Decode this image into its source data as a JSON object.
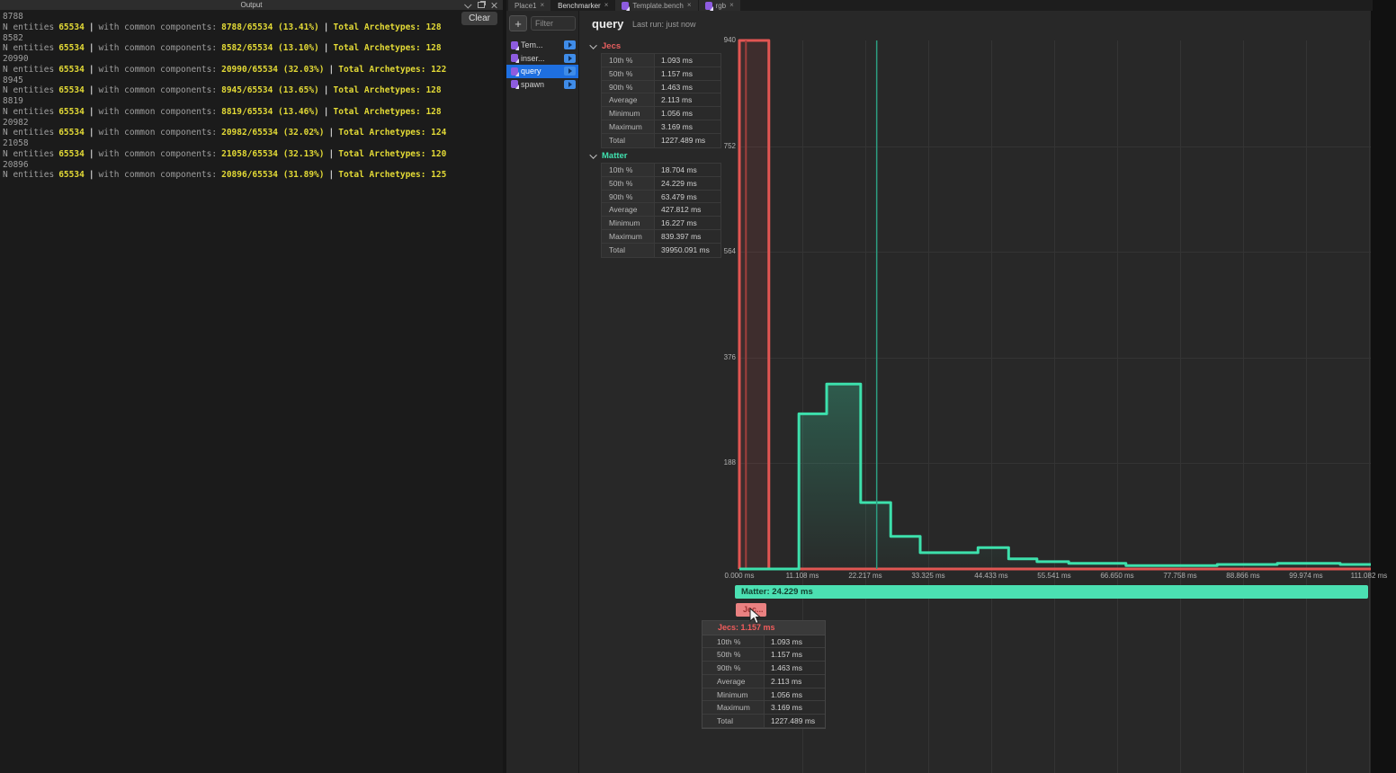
{
  "output": {
    "title": "Output",
    "clear_label": "Clear",
    "label_prefix": "N entities",
    "entities": "65534",
    "separator": "|",
    "label_mid": "with common components:",
    "lines": [
      {
        "raw": "8788",
        "ratio": "8788/65534 (13.41%)",
        "archetypes": "Total Archetypes: 128"
      },
      {
        "raw": "8582",
        "ratio": "8582/65534 (13.10%)",
        "archetypes": "Total Archetypes: 128"
      },
      {
        "raw": "20990",
        "ratio": "20990/65534 (32.03%)",
        "archetypes": "Total Archetypes: 122"
      },
      {
        "raw": "8945",
        "ratio": "8945/65534 (13.65%)",
        "archetypes": "Total Archetypes: 128"
      },
      {
        "raw": "8819",
        "ratio": "8819/65534 (13.46%)",
        "archetypes": "Total Archetypes: 128"
      },
      {
        "raw": "20982",
        "ratio": "20982/65534 (32.02%)",
        "archetypes": "Total Archetypes: 124"
      },
      {
        "raw": "21058",
        "ratio": "21058/65534 (32.13%)",
        "archetypes": "Total Archetypes: 120"
      },
      {
        "raw": "20896",
        "ratio": "20896/65534 (31.89%)",
        "archetypes": "Total Archetypes: 125"
      }
    ]
  },
  "tabs": [
    {
      "label": "Place1",
      "close": "×",
      "icon": false,
      "active": false
    },
    {
      "label": "Benchmarker",
      "close": "×",
      "icon": false,
      "active": true
    },
    {
      "label": "Template.bench",
      "close": "×",
      "icon": true,
      "active": false
    },
    {
      "label": "rgb",
      "close": "×",
      "icon": true,
      "active": false
    }
  ],
  "bench_list": {
    "add_label": "+",
    "filter_placeholder": "Filter",
    "items": [
      {
        "label": "Tem...",
        "selected": false
      },
      {
        "label": "inser...",
        "selected": false
      },
      {
        "label": "query",
        "selected": true
      },
      {
        "label": "spawn",
        "selected": false
      }
    ]
  },
  "detail": {
    "title": "query",
    "last_run": "Last run: just now",
    "sections": [
      {
        "name": "Jecs",
        "color": "#e85f5f",
        "rows": [
          {
            "label": "10th %",
            "value": "1.093 ms"
          },
          {
            "label": "50th %",
            "value": "1.157 ms"
          },
          {
            "label": "90th %",
            "value": "1.463 ms"
          },
          {
            "label": "Average",
            "value": "2.113 ms"
          },
          {
            "label": "Minimum",
            "value": "1.056 ms"
          },
          {
            "label": "Maximum",
            "value": "3.169 ms"
          },
          {
            "label": "Total",
            "value": "1227.489 ms"
          }
        ]
      },
      {
        "name": "Matter",
        "color": "#3fe0ae",
        "rows": [
          {
            "label": "10th %",
            "value": "18.704 ms"
          },
          {
            "label": "50th %",
            "value": "24.229 ms"
          },
          {
            "label": "90th %",
            "value": "63.479 ms"
          },
          {
            "label": "Average",
            "value": "427.812 ms"
          },
          {
            "label": "Minimum",
            "value": "16.227 ms"
          },
          {
            "label": "Maximum",
            "value": "839.397 ms"
          },
          {
            "label": "Total",
            "value": "39950.091 ms"
          }
        ]
      }
    ]
  },
  "chart_data": {
    "type": "histogram-step-line",
    "grid": true,
    "xlim": [
      0,
      111.4
    ],
    "ylim": [
      0,
      940
    ],
    "x_ticks": [
      {
        "ms": 0,
        "label": "0.000 ms"
      },
      {
        "ms": 11.108,
        "label": "11.108 ms"
      },
      {
        "ms": 22.217,
        "label": "22.217 ms"
      },
      {
        "ms": 33.325,
        "label": "33.325 ms"
      },
      {
        "ms": 44.433,
        "label": "44.433 ms"
      },
      {
        "ms": 55.541,
        "label": "55.541 ms"
      },
      {
        "ms": 66.65,
        "label": "66.650 ms"
      },
      {
        "ms": 77.758,
        "label": "77.758 ms"
      },
      {
        "ms": 88.866,
        "label": "88.866 ms"
      },
      {
        "ms": 99.974,
        "label": "99.974 ms"
      },
      {
        "ms": 111.082,
        "label": "111.082 ms"
      }
    ],
    "y_ticks": [
      {
        "value": 940,
        "label": "940"
      },
      {
        "value": 752,
        "label": "752"
      },
      {
        "value": 564,
        "label": "564"
      },
      {
        "value": 376,
        "label": "376"
      },
      {
        "value": 188,
        "label": "188"
      }
    ],
    "series": [
      {
        "name": "Jecs",
        "color": "#e25552",
        "fill": "rgba(226,85,82,0.12)",
        "median_ms": 1.157,
        "median_color": "#a03e3c",
        "steps": [
          {
            "x0": 0,
            "x1": 5.2,
            "count": 940
          },
          {
            "x0": 5.2,
            "x1": 111.4,
            "count": 0
          }
        ]
      },
      {
        "name": "Matter",
        "color": "#3de0ac",
        "fill_top": "rgba(61,224,172,0.28)",
        "fill_bottom": "rgba(61,224,172,0.02)",
        "median_ms": 24.229,
        "median_color": "#2c9c80",
        "steps": [
          {
            "x0": 0,
            "x1": 10.5,
            "count": 0
          },
          {
            "x0": 10.5,
            "x1": 15.4,
            "count": 276
          },
          {
            "x0": 15.4,
            "x1": 21.4,
            "count": 329
          },
          {
            "x0": 21.4,
            "x1": 26.7,
            "count": 118
          },
          {
            "x0": 26.7,
            "x1": 31.9,
            "count": 58
          },
          {
            "x0": 31.9,
            "x1": 42.1,
            "count": 29
          },
          {
            "x0": 42.1,
            "x1": 47.5,
            "count": 38
          },
          {
            "x0": 47.5,
            "x1": 52.5,
            "count": 18
          },
          {
            "x0": 52.5,
            "x1": 58.1,
            "count": 13
          },
          {
            "x0": 58.1,
            "x1": 68.2,
            "count": 10
          },
          {
            "x0": 68.2,
            "x1": 84.3,
            "count": 6
          },
          {
            "x0": 84.3,
            "x1": 94.9,
            "count": 8
          },
          {
            "x0": 94.9,
            "x1": 106.0,
            "count": 10
          },
          {
            "x0": 106.0,
            "x1": 111.4,
            "count": 8
          }
        ]
      }
    ]
  },
  "hover": {
    "matter_bar_label": "Matter: 24.229 ms",
    "jecs_bar_label": "Jec...",
    "tooltip": {
      "title": "Jecs: 1.157 ms",
      "rows": [
        {
          "label": "10th %",
          "value": "1.093 ms"
        },
        {
          "label": "50th %",
          "value": "1.157 ms"
        },
        {
          "label": "90th %",
          "value": "1.463 ms"
        },
        {
          "label": "Average",
          "value": "2.113 ms"
        },
        {
          "label": "Minimum",
          "value": "1.056 ms"
        },
        {
          "label": "Maximum",
          "value": "3.169 ms"
        },
        {
          "label": "Total",
          "value": "1227.489 ms"
        }
      ]
    }
  }
}
